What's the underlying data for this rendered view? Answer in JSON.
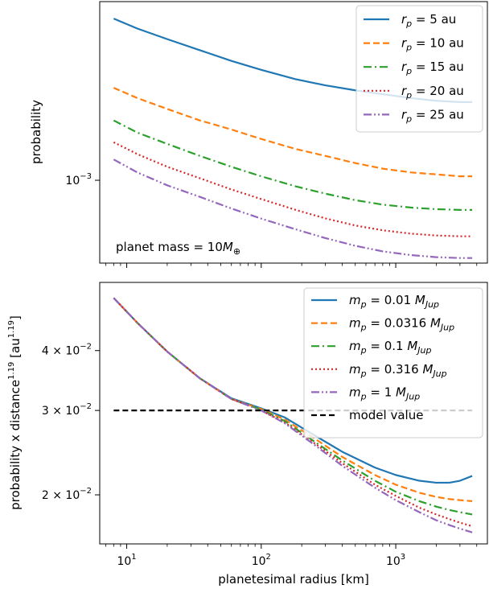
{
  "colors": {
    "blue": "#1f77b4",
    "orange": "#ff7f0e",
    "green": "#2ca02c",
    "red": "#d62728",
    "purple": "#9467bd",
    "black": "#000000"
  },
  "chart_data": [
    {
      "type": "line",
      "panel": "top",
      "xscale": "log",
      "yscale": "log",
      "xlim": [
        6.3,
        4800
      ],
      "ylim": [
        0.00066,
        0.00245
      ],
      "xlabel": "",
      "ylabel": "probability",
      "yticks": [
        {
          "value": 0.001,
          "base": "10",
          "exp": "−3"
        }
      ],
      "annotation": {
        "text": "planet mass = 10",
        "symbol": "M",
        "sub": "⊕"
      },
      "legend": {
        "location": "upper right"
      },
      "x": [
        8,
        12,
        20,
        35,
        60,
        100,
        180,
        300,
        500,
        800,
        1300,
        2000,
        3000,
        3700
      ],
      "series": [
        {
          "name": "r_p = 5 au",
          "legend_var": "r",
          "legend_sub": "p",
          "legend_rest": " = 5 au",
          "color": "blue",
          "dash": "",
          "values": [
            0.00225,
            0.00214,
            0.00203,
            0.00192,
            0.00182,
            0.00174,
            0.00166,
            0.00161,
            0.00157,
            0.00154,
            0.00151,
            0.00149,
            0.00148,
            0.00148
          ]
        },
        {
          "name": "r_p = 10 au",
          "legend_var": "r",
          "legend_sub": "p",
          "legend_rest": " = 10 au",
          "color": "orange",
          "dash": "8,4",
          "values": [
            0.00159,
            0.00151,
            0.00143,
            0.00135,
            0.00129,
            0.00123,
            0.00117,
            0.00113,
            0.00109,
            0.00106,
            0.00104,
            0.00103,
            0.00102,
            0.00102
          ]
        },
        {
          "name": "r_p = 15 au",
          "legend_var": "r",
          "legend_sub": "p",
          "legend_rest": " = 15 au",
          "color": "green",
          "dash": "10,4,2,4",
          "values": [
            0.00135,
            0.00127,
            0.0012,
            0.00113,
            0.00107,
            0.00102,
            0.00097,
            0.000935,
            0.000905,
            0.000885,
            0.000872,
            0.000865,
            0.000862,
            0.000862
          ]
        },
        {
          "name": "r_p = 20 au",
          "legend_var": "r",
          "legend_sub": "p",
          "legend_rest": " = 20 au",
          "color": "red",
          "dash": "2,3",
          "values": [
            0.00121,
            0.00114,
            0.00107,
            0.00101,
            0.000955,
            0.00091,
            0.000862,
            0.000826,
            0.000797,
            0.000778,
            0.000765,
            0.000758,
            0.000755,
            0.000755
          ]
        },
        {
          "name": "r_p = 25 au",
          "legend_var": "r",
          "legend_sub": "p",
          "legend_rest": " = 25 au",
          "color": "purple",
          "dash": "10,3,2,3,2,3",
          "values": [
            0.00111,
            0.00104,
            0.000975,
            0.00092,
            0.000868,
            0.000825,
            0.000782,
            0.000748,
            0.00072,
            0.0007,
            0.000687,
            0.00068,
            0.000677,
            0.000677
          ]
        }
      ]
    },
    {
      "type": "line",
      "panel": "bottom",
      "xscale": "log",
      "yscale": "log",
      "xlim": [
        6.3,
        4800
      ],
      "ylim": [
        0.0158,
        0.0555
      ],
      "xlabel": "planetesimal radius [km]",
      "ylabel": "probability x distance",
      "ylabel_sup": "1.19",
      "ylabel_unit": " [au",
      "ylabel_unit_sup": "1.19",
      "ylabel_close": "]",
      "xticks": [
        {
          "value": 10,
          "base": "10",
          "exp": "1"
        },
        {
          "value": 100,
          "base": "10",
          "exp": "2"
        },
        {
          "value": 1000,
          "base": "10",
          "exp": "3"
        }
      ],
      "yticks": [
        {
          "value": 0.02,
          "base": "2 × 10",
          "exp": "−2"
        },
        {
          "value": 0.03,
          "base": "3 × 10",
          "exp": "−2"
        },
        {
          "value": 0.04,
          "base": "4 × 10",
          "exp": "−2"
        }
      ],
      "legend": {
        "location": "upper right"
      },
      "x": [
        8,
        12,
        20,
        35,
        60,
        100,
        150,
        250,
        400,
        700,
        1000,
        1500,
        2000,
        2500,
        3000,
        3700
      ],
      "series": [
        {
          "name": "m_p = 0.01 M_Jup",
          "legend_var": "m",
          "legend_sub": "p",
          "legend_rest": " = 0.01 ",
          "legend_unit": "M",
          "legend_unit_sub": "Jup",
          "color": "blue",
          "dash": "",
          "values": [
            0.0515,
            0.0457,
            0.0398,
            0.035,
            0.0318,
            0.0303,
            0.029,
            0.0266,
            0.0246,
            0.0228,
            0.022,
            0.0214,
            0.0212,
            0.0212,
            0.0214,
            0.0219
          ]
        },
        {
          "name": "m_p = 0.0316 M_Jup",
          "legend_var": "m",
          "legend_sub": "p",
          "legend_rest": " = 0.0316 ",
          "legend_unit": "M",
          "legend_unit_sub": "Jup",
          "color": "orange",
          "dash": "8,4",
          "values": [
            0.0515,
            0.0457,
            0.0398,
            0.035,
            0.0317,
            0.0302,
            0.0287,
            0.0262,
            0.024,
            0.022,
            0.021,
            0.0202,
            0.0198,
            0.0196,
            0.0195,
            0.0194
          ]
        },
        {
          "name": "m_p = 0.1 M_Jup",
          "legend_var": "m",
          "legend_sub": "p",
          "legend_rest": " = 0.1 ",
          "legend_unit": "M",
          "legend_unit_sub": "Jup",
          "color": "green",
          "dash": "10,4,2,4",
          "values": [
            0.0515,
            0.0457,
            0.0398,
            0.035,
            0.0317,
            0.0301,
            0.0285,
            0.0258,
            0.0236,
            0.0214,
            0.0203,
            0.0194,
            0.0189,
            0.0186,
            0.0184,
            0.0182
          ]
        },
        {
          "name": "m_p = 0.316 M_Jup",
          "legend_var": "m",
          "legend_sub": "p",
          "legend_rest": " = 0.316 ",
          "legend_unit": "M",
          "legend_unit_sub": "Jup",
          "color": "red",
          "dash": "2,3",
          "values": [
            0.0515,
            0.0457,
            0.0398,
            0.035,
            0.0317,
            0.03,
            0.0283,
            0.0256,
            0.0233,
            0.021,
            0.0199,
            0.0188,
            0.0182,
            0.0178,
            0.0175,
            0.0172
          ]
        },
        {
          "name": "m_p = 1 M_Jup",
          "legend_var": "m",
          "legend_sub": "p",
          "legend_rest": " = 1 ",
          "legend_unit": "M",
          "legend_unit_sub": "Jup",
          "color": "purple",
          "dash": "10,3,2,3,2,3",
          "values": [
            0.0515,
            0.0457,
            0.0398,
            0.035,
            0.0317,
            0.03,
            0.0282,
            0.0254,
            0.023,
            0.0207,
            0.0195,
            0.0184,
            0.0177,
            0.0173,
            0.017,
            0.0167
          ]
        },
        {
          "name": "model value",
          "color": "black",
          "dash": "7,4",
          "constant": 0.03,
          "x_range": [
            8,
            3700
          ]
        }
      ]
    }
  ]
}
